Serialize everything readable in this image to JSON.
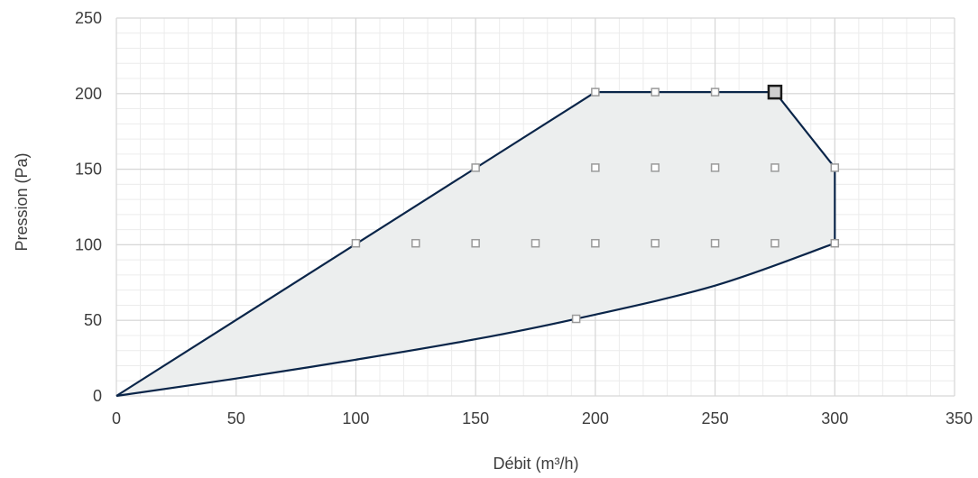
{
  "chart_data": {
    "type": "scatter",
    "xlabel": "Débit (m³/h)",
    "ylabel": "Pression (Pa)",
    "xlim": [
      0,
      350
    ],
    "ylim": [
      0,
      250
    ],
    "x_ticks": [
      0,
      50,
      100,
      150,
      200,
      250,
      300,
      350
    ],
    "y_ticks": [
      0,
      50,
      100,
      150,
      200,
      250
    ],
    "x_tick_labels": [
      "0",
      "50",
      "100",
      "150",
      "200",
      "250",
      "300",
      "350"
    ],
    "y_tick_labels": [
      "0",
      "50",
      "100",
      "150",
      "200",
      "250"
    ],
    "grid": true,
    "minor_grid": true,
    "operating_area": {
      "upper_boundary": [
        [
          0,
          0
        ],
        [
          200,
          201
        ],
        [
          275,
          201
        ],
        [
          300,
          151
        ],
        [
          300,
          101
        ]
      ],
      "lower_curve": [
        [
          0,
          0
        ],
        [
          50,
          11.5
        ],
        [
          100,
          24
        ],
        [
          150,
          37.5
        ],
        [
          192,
          51
        ],
        [
          250,
          73
        ],
        [
          300,
          101
        ]
      ],
      "fill_color": "#eceeee",
      "line_color": "#0a2549"
    },
    "points": [
      {
        "x": 100,
        "y": 101
      },
      {
        "x": 125,
        "y": 101
      },
      {
        "x": 150,
        "y": 101
      },
      {
        "x": 175,
        "y": 101
      },
      {
        "x": 200,
        "y": 101
      },
      {
        "x": 225,
        "y": 101
      },
      {
        "x": 250,
        "y": 101
      },
      {
        "x": 275,
        "y": 101
      },
      {
        "x": 300,
        "y": 101
      },
      {
        "x": 150,
        "y": 151
      },
      {
        "x": 200,
        "y": 151
      },
      {
        "x": 225,
        "y": 151
      },
      {
        "x": 250,
        "y": 151
      },
      {
        "x": 275,
        "y": 151
      },
      {
        "x": 300,
        "y": 151
      },
      {
        "x": 200,
        "y": 201
      },
      {
        "x": 225,
        "y": 201
      },
      {
        "x": 250,
        "y": 201
      },
      {
        "x": 192,
        "y": 51
      }
    ],
    "highlighted_point": {
      "x": 275,
      "y": 201
    },
    "marker_color": "#9a9a9a",
    "highlight_color": "#1a1a1a"
  }
}
